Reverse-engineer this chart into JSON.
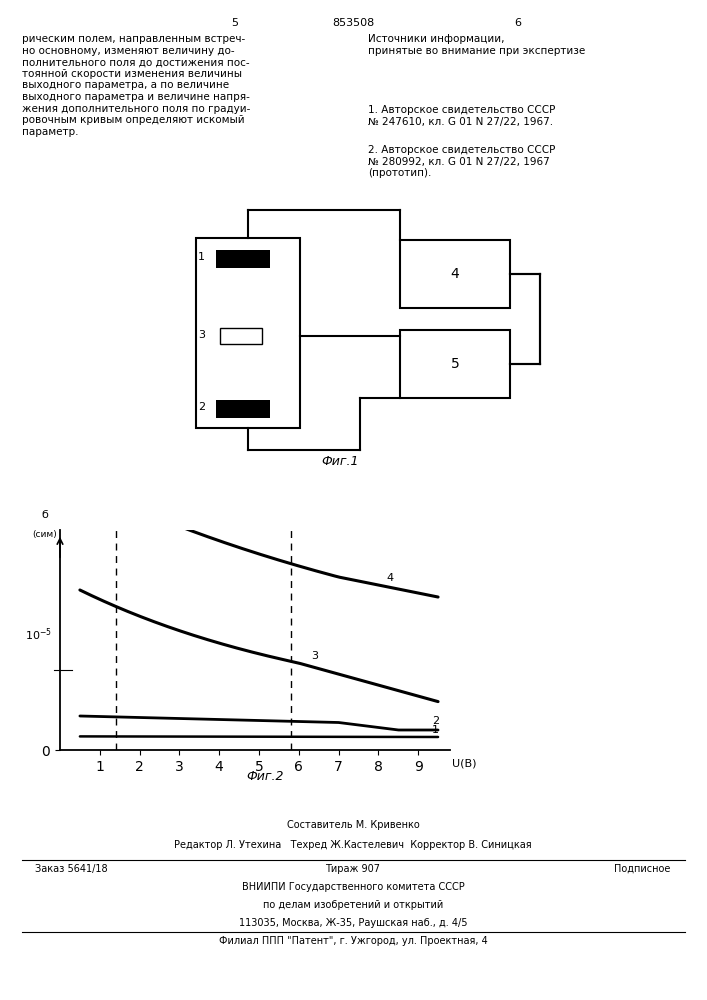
{
  "page_num_left": "5",
  "page_num_center": "853508",
  "page_num_right": "6",
  "text_left": "рическим полем, направленным встреч-\nно основному, изменяют величину до-\nполнительного поля до достижения пос-\nтоянной скорости изменения величины\nвыходного параметра, а по величине\nвыходного параметра и величине напря-\nжения дополнительного поля по градуи-\nровочным кривым определяют искомый\nпараметр.",
  "text_right_header": "Источники информации,\nпринятые во внимание при экспертизе",
  "text_right_1": "1. Авторское свидетельство СССР\n№ 247610, кл. G 01 N 27/22, 1967.",
  "text_right_2": "2. Авторское свидетельство СССР\n№ 280992, кл. G 01 N 27/22, 1967\n(прототип).",
  "fig1_caption": "Фиг.1",
  "fig2_caption": "Фиг.2",
  "footer_line1": "Составитель М. Кривенко",
  "footer_line2": "Редактор Л. Утехина   Техред Ж.Кастелевич  Корректор В. Синицкая",
  "footer_order": "Заказ 5641/18",
  "footer_tirazh": "Тираж 907",
  "footer_podp": "Подписное",
  "footer_vnipi1": "ВНИИПИ Государственного комитета СССР",
  "footer_vnipi2": "по делам изобретений и открытий",
  "footer_vnipi3": "113035, Москва, Ж-35, Раушская наб., д. 4/5",
  "footer_filial": "Филиал ППП \"Патент\", г. Ужгород, ул. Проектная, 4"
}
